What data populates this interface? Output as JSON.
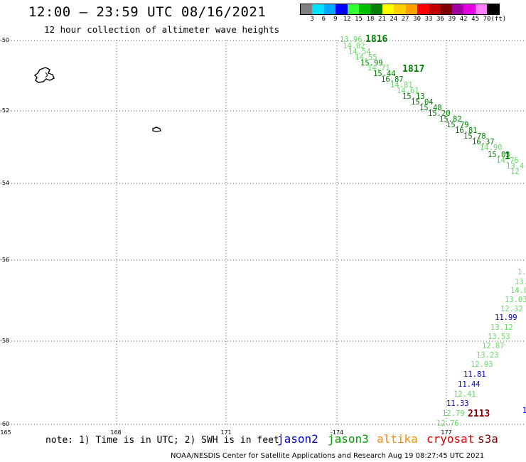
{
  "header": {
    "title": "12:00 – 23:59 UTC 08/16/2021",
    "subtitle": "12 hour collection of altimeter wave heights"
  },
  "colorbar": {
    "colors": [
      "#808080",
      "#00e0ff",
      "#00a8ff",
      "#0000ff",
      "#33ff33",
      "#00c000",
      "#008000",
      "#ffff00",
      "#ffd000",
      "#ffa000",
      "#ff0000",
      "#c00000",
      "#800000",
      "#a000a0",
      "#e000e0",
      "#ff80ff",
      "#000000"
    ],
    "labels": [
      "3",
      "6",
      "9",
      "12",
      "15",
      "18",
      "21",
      "24",
      "27",
      "30",
      "33",
      "36",
      "39",
      "42",
      "45",
      "70",
      "(ft)"
    ]
  },
  "axes": {
    "lat_labels": [
      "-50",
      "-52",
      "-54",
      "-56",
      "-58",
      "-60"
    ],
    "lon_labels": [
      "165",
      "168",
      "171",
      "-174",
      "177"
    ]
  },
  "track_points": [
    {
      "v": "13.96",
      "c": "#66dd66"
    },
    {
      "v": "1816",
      "c": "#008000",
      "big": true
    },
    {
      "v": "14.02",
      "c": "#66dd66"
    },
    {
      "v": "14.54",
      "c": "#66dd66"
    },
    {
      "v": "14.55",
      "c": "#66dd66"
    },
    {
      "v": "15.99",
      "c": "#008000"
    },
    {
      "v": "14.71",
      "c": "#66dd66"
    },
    {
      "v": "1817",
      "c": "#008000",
      "big": true
    },
    {
      "v": "15.44",
      "c": "#008000"
    },
    {
      "v": "16.87",
      "c": "#008000"
    },
    {
      "v": "14.81",
      "c": "#66dd66"
    },
    {
      "v": "14.61",
      "c": "#66dd66"
    },
    {
      "v": "15.13",
      "c": "#008000"
    },
    {
      "v": "15.04",
      "c": "#008000"
    },
    {
      "v": "15.48",
      "c": "#008000"
    },
    {
      "v": "15.20",
      "c": "#008000"
    },
    {
      "v": "15.82",
      "c": "#008000"
    },
    {
      "v": "15.79",
      "c": "#008000"
    },
    {
      "v": "16.81",
      "c": "#008000"
    },
    {
      "v": "15.78",
      "c": "#008000"
    },
    {
      "v": "16.37",
      "c": "#008000"
    },
    {
      "v": "14.90",
      "c": "#66dd66"
    },
    {
      "v": "15.03",
      "c": "#008000"
    },
    {
      "v": "1",
      "c": "#008000",
      "big": true
    },
    {
      "v": "14.76",
      "c": "#66dd66"
    },
    {
      "v": "13.4",
      "c": "#66dd66"
    },
    {
      "v": "12",
      "c": "#66dd66"
    },
    {
      "v": "1.",
      "c": "#66dd66"
    },
    {
      "v": "13.",
      "c": "#66dd66"
    },
    {
      "v": "14.0",
      "c": "#66dd66"
    },
    {
      "v": "13.03",
      "c": "#66dd66"
    },
    {
      "v": "12.32",
      "c": "#66dd66"
    },
    {
      "v": "11.99",
      "c": "#0000cc"
    },
    {
      "v": "13.12",
      "c": "#66dd66"
    },
    {
      "v": "13.53",
      "c": "#66dd66"
    },
    {
      "v": "12.87",
      "c": "#66dd66"
    },
    {
      "v": "13.23",
      "c": "#66dd66"
    },
    {
      "v": "12.93",
      "c": "#66dd66"
    },
    {
      "v": "11.81",
      "c": "#0000cc"
    },
    {
      "v": "11.44",
      "c": "#0000cc"
    },
    {
      "v": "12.41",
      "c": "#66dd66"
    },
    {
      "v": "11.33",
      "c": "#0000cc"
    },
    {
      "v": "12.79",
      "c": "#66dd66"
    },
    {
      "v": "2113",
      "c": "#800000",
      "big": true
    },
    {
      "v": "1",
      "c": "#0000cc"
    },
    {
      "v": "12.76",
      "c": "#66dd66"
    }
  ],
  "footer": {
    "note": "note: 1) Time is in UTC; 2) SWH is in feet",
    "satellites": [
      {
        "name": "jason2",
        "color": "#0000cc"
      },
      {
        "name": "jason3",
        "color": "#00a000"
      },
      {
        "name": "altika",
        "color": "#ff8c00"
      },
      {
        "name": "cryosat",
        "color": "#dd0000"
      },
      {
        "name": "s3a",
        "color": "#800000"
      }
    ],
    "credit": "NOAA/NESDIS Center for Satellite Applications and Research   Aug 19 08:27:45 UTC 2021"
  }
}
